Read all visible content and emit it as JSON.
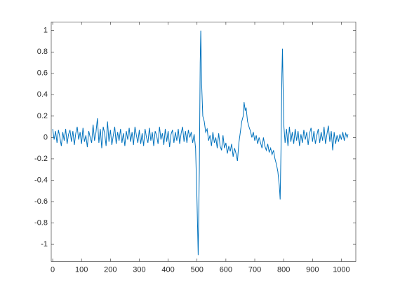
{
  "chart_data": {
    "type": "line",
    "color": "#0072bd",
    "x": [
      0,
      5,
      10,
      15,
      20,
      25,
      30,
      35,
      40,
      45,
      50,
      55,
      60,
      65,
      70,
      75,
      80,
      85,
      90,
      95,
      100,
      105,
      110,
      115,
      120,
      125,
      130,
      135,
      140,
      145,
      150,
      155,
      160,
      165,
      170,
      175,
      180,
      185,
      190,
      195,
      200,
      205,
      210,
      215,
      220,
      225,
      230,
      235,
      240,
      245,
      250,
      255,
      260,
      265,
      270,
      275,
      280,
      285,
      290,
      295,
      300,
      305,
      310,
      315,
      320,
      325,
      330,
      335,
      340,
      345,
      350,
      355,
      360,
      365,
      370,
      375,
      380,
      385,
      390,
      395,
      400,
      405,
      410,
      415,
      420,
      425,
      430,
      435,
      440,
      445,
      450,
      455,
      460,
      465,
      470,
      475,
      480,
      485,
      490,
      495,
      500,
      504,
      508,
      511,
      513,
      516,
      520,
      525,
      530,
      535,
      540,
      545,
      550,
      555,
      560,
      565,
      570,
      575,
      580,
      585,
      590,
      595,
      600,
      605,
      610,
      615,
      620,
      625,
      630,
      635,
      640,
      645,
      650,
      655,
      660,
      663,
      667,
      670,
      675,
      680,
      685,
      690,
      695,
      700,
      705,
      710,
      715,
      720,
      725,
      730,
      735,
      740,
      745,
      750,
      755,
      760,
      765,
      770,
      775,
      780,
      785,
      788,
      791,
      794,
      796,
      798,
      801,
      805,
      810,
      815,
      820,
      825,
      830,
      835,
      840,
      845,
      850,
      855,
      860,
      865,
      870,
      875,
      880,
      885,
      890,
      895,
      900,
      905,
      910,
      915,
      920,
      925,
      930,
      935,
      940,
      945,
      950,
      955,
      960,
      965,
      970,
      975,
      980,
      985,
      990,
      995,
      1000,
      1005,
      1010,
      1015,
      1020,
      1023
    ],
    "values": [
      0.08,
      -0.02,
      0.06,
      -0.05,
      0.07,
      0.0,
      -0.08,
      0.05,
      -0.03,
      0.08,
      -0.06,
      0.03,
      0.07,
      -0.04,
      0.06,
      -0.07,
      0.04,
      0.1,
      -0.02,
      0.05,
      -0.06,
      0.09,
      -0.04,
      0.02,
      -0.09,
      0.06,
      0.0,
      -0.05,
      0.12,
      -0.03,
      0.05,
      0.18,
      -0.05,
      0.08,
      -0.1,
      0.1,
      0.04,
      -0.08,
      0.15,
      -0.04,
      0.07,
      -0.07,
      0.02,
      0.1,
      -0.06,
      0.05,
      -0.03,
      0.08,
      -0.05,
      0.04,
      -0.08,
      0.06,
      -0.02,
      0.09,
      -0.04,
      0.05,
      -0.07,
      0.1,
      0.02,
      -0.05,
      0.07,
      -0.06,
      0.04,
      -0.08,
      0.08,
      0.0,
      -0.05,
      0.09,
      -0.03,
      0.05,
      -0.08,
      0.06,
      0.02,
      -0.06,
      0.1,
      -0.02,
      0.04,
      -0.07,
      0.08,
      -0.04,
      0.06,
      -0.09,
      0.03,
      0.07,
      -0.05,
      0.05,
      -0.03,
      0.08,
      -0.06,
      0.04,
      0.1,
      -0.04,
      0.06,
      -0.05,
      0.07,
      0.0,
      0.05,
      -0.05,
      0.03,
      -0.1,
      -0.6,
      -1.1,
      -0.3,
      0.7,
      1.0,
      0.5,
      0.2,
      0.15,
      0.05,
      0.08,
      -0.03,
      0.02,
      -0.08,
      0.05,
      -0.05,
      0.0,
      -0.1,
      0.04,
      -0.08,
      -0.12,
      0.02,
      -0.1,
      -0.05,
      -0.15,
      -0.08,
      -0.13,
      -0.06,
      -0.18,
      -0.1,
      -0.15,
      -0.22,
      -0.05,
      0.05,
      0.15,
      0.2,
      0.33,
      0.25,
      0.28,
      0.15,
      0.1,
      0.06,
      0.0,
      0.05,
      -0.03,
      0.02,
      -0.06,
      0.0,
      -0.05,
      -0.1,
      0.0,
      -0.08,
      -0.12,
      -0.06,
      -0.14,
      -0.1,
      -0.16,
      -0.12,
      -0.2,
      -0.25,
      -0.32,
      -0.45,
      -0.58,
      -0.1,
      0.6,
      0.83,
      0.5,
      0.1,
      -0.05,
      0.08,
      -0.08,
      0.1,
      -0.04,
      0.05,
      -0.06,
      0.08,
      -0.03,
      0.06,
      -0.08,
      0.03,
      -0.05,
      0.07,
      -0.02,
      0.05,
      -0.07,
      0.04,
      0.09,
      -0.04,
      0.06,
      -0.06,
      0.02,
      0.08,
      -0.05,
      0.05,
      -0.03,
      0.1,
      -0.06,
      0.03,
      0.11,
      -0.04,
      0.06,
      -0.12,
      0.05,
      -0.06,
      0.02,
      -0.04,
      0.03,
      -0.02,
      0.05,
      -0.03,
      0.04,
      0.0,
      0.03
    ],
    "xlim": [
      -5,
      1050
    ],
    "ylim": [
      -1.16,
      1.08
    ],
    "xticks": [
      0,
      100,
      200,
      300,
      400,
      500,
      600,
      700,
      800,
      900,
      1000
    ],
    "yticks": [
      -1,
      -0.8,
      -0.6,
      -0.4,
      -0.2,
      0,
      0.2,
      0.4,
      0.6,
      0.8,
      1
    ]
  }
}
